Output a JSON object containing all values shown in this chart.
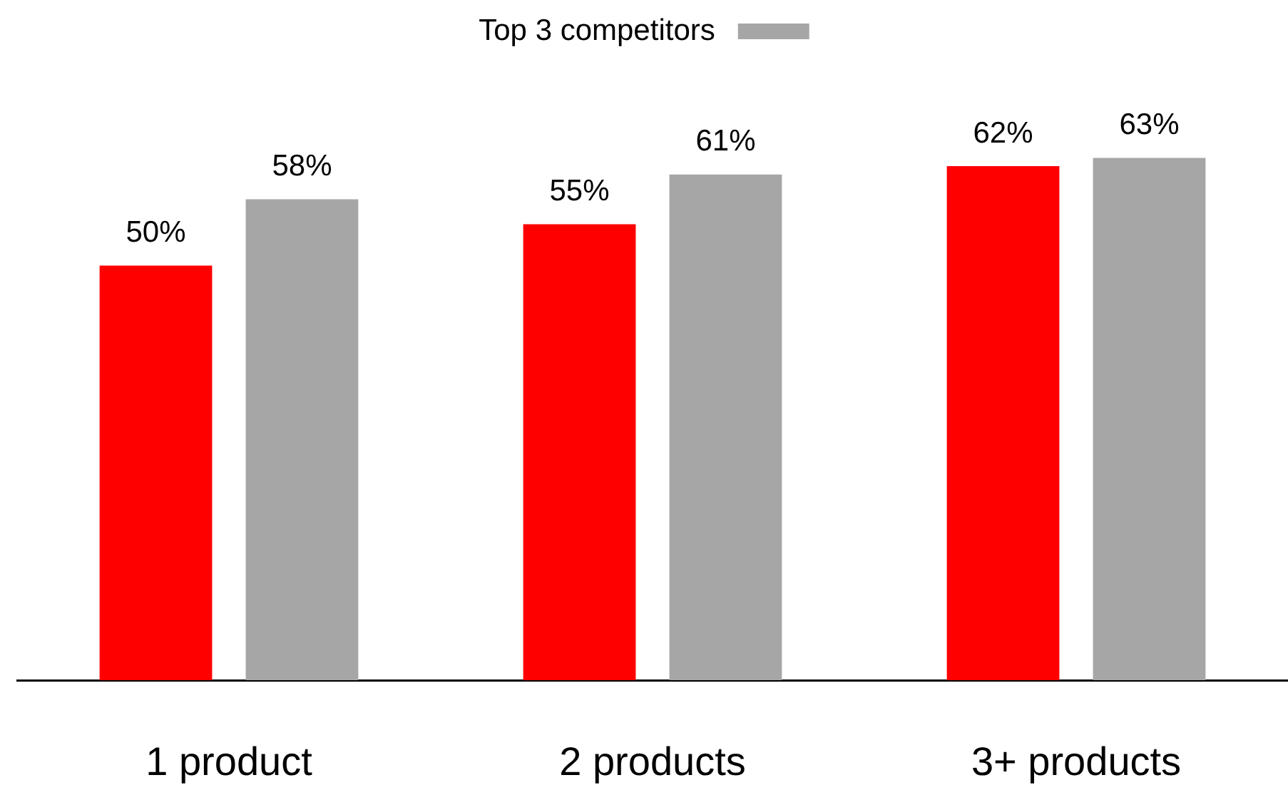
{
  "chart_data": {
    "type": "bar",
    "categories": [
      "1 product",
      "2 products",
      "3+ products"
    ],
    "series": [
      {
        "color": "#ff0000",
        "values": [
          50,
          55,
          62
        ],
        "value_labels": [
          "50%",
          "55%",
          "62%"
        ]
      },
      {
        "name": "Top 3 competitors",
        "color": "#a6a6a6",
        "values": [
          58,
          61,
          63
        ],
        "value_labels": [
          "58%",
          "61%",
          "63%"
        ]
      }
    ],
    "legend": "top"
  }
}
